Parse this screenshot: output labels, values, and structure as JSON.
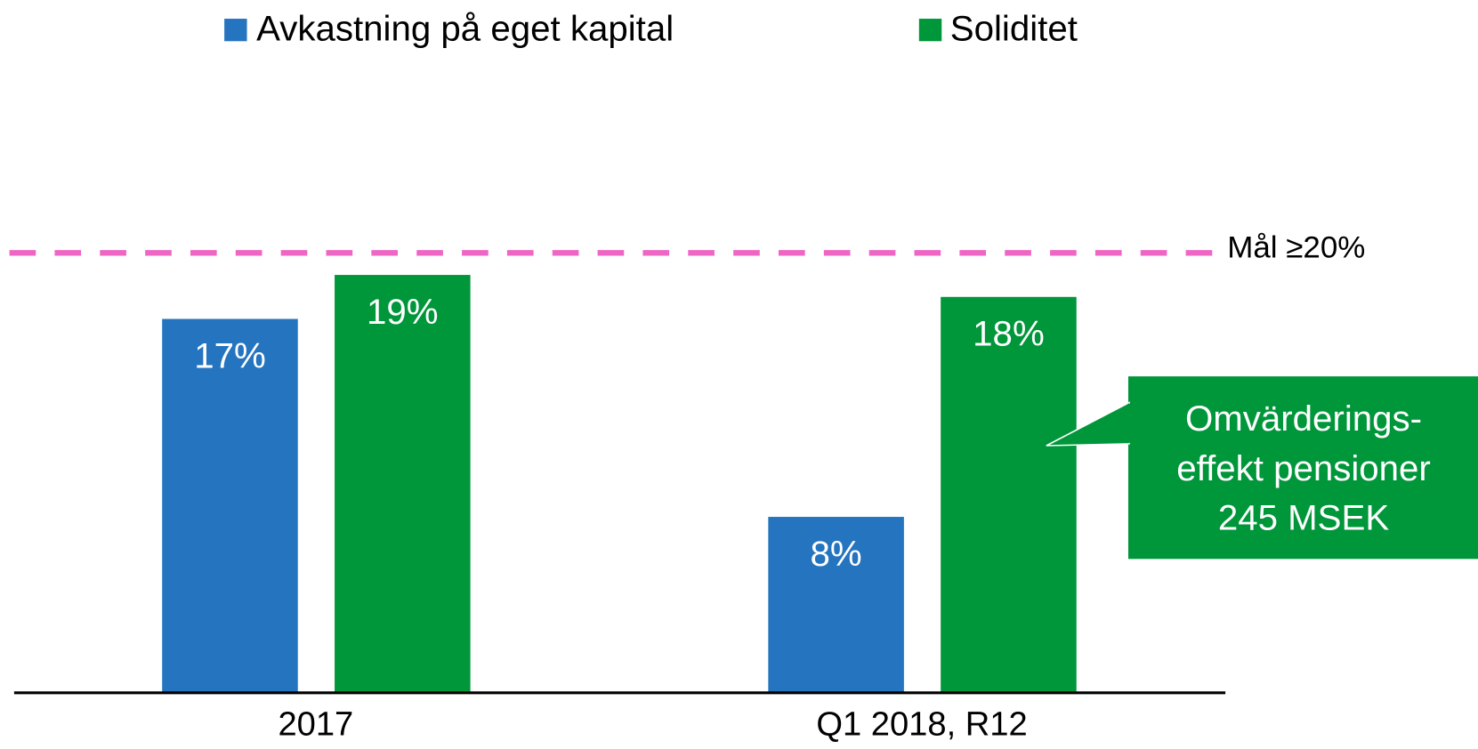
{
  "chart_data": {
    "type": "bar",
    "categories": [
      "2017",
      "Q1 2018, R12"
    ],
    "series": [
      {
        "name": "Avkastning på eget kapital",
        "color": "#2574bf",
        "values": [
          17,
          8
        ],
        "value_labels": [
          "17%",
          "8%"
        ]
      },
      {
        "name": "Soliditet",
        "color": "#00963a",
        "values": [
          19,
          18
        ],
        "value_labels": [
          "19%",
          "18%"
        ]
      }
    ],
    "ylim": [
      0,
      31.5
    ],
    "target": {
      "value": 20,
      "label": "Mål ≥20%",
      "color": "#ee66c4"
    },
    "annotation": {
      "lines": [
        "Omvärderings-",
        "effekt pensioner",
        "245 MSEK"
      ],
      "color": "#00963a"
    },
    "legend": "top"
  }
}
